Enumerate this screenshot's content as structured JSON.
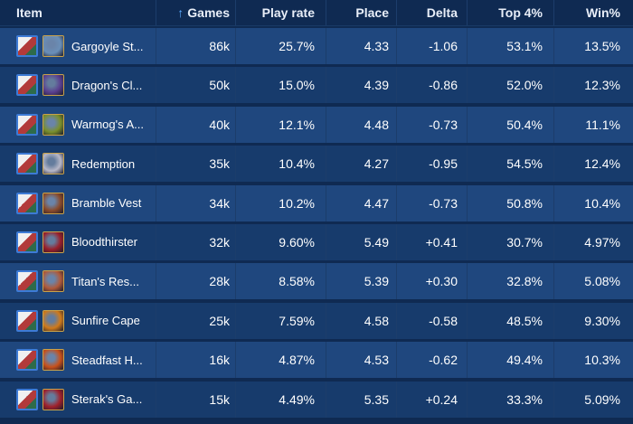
{
  "header": {
    "item": "Item",
    "games": "Games",
    "play_rate": "Play rate",
    "place": "Place",
    "delta": "Delta",
    "top4": "Top 4%",
    "win": "Win%"
  },
  "rows": [
    {
      "name": "Gargoyle St...",
      "icon": "gargoyle-stoneplate-icon",
      "color": "#6a8fb8",
      "games": "86k",
      "play_rate": "25.7%",
      "place": "4.33",
      "delta": "-1.06",
      "top4": "53.1%",
      "win": "13.5%"
    },
    {
      "name": "Dragon's Cl...",
      "icon": "dragons-claw-icon",
      "color": "#5a3f8f",
      "games": "50k",
      "play_rate": "15.0%",
      "place": "4.39",
      "delta": "-0.86",
      "top4": "52.0%",
      "win": "12.3%"
    },
    {
      "name": "Warmog's A...",
      "icon": "warmogs-armor-icon",
      "color": "#7a8f2a",
      "games": "40k",
      "play_rate": "12.1%",
      "place": "4.48",
      "delta": "-0.73",
      "top4": "50.4%",
      "win": "11.1%"
    },
    {
      "name": "Redemption",
      "icon": "redemption-icon",
      "color": "#b8b8c8",
      "games": "35k",
      "play_rate": "10.4%",
      "place": "4.27",
      "delta": "-0.95",
      "top4": "54.5%",
      "win": "12.4%"
    },
    {
      "name": "Bramble Vest",
      "icon": "bramble-vest-icon",
      "color": "#8a4a2a",
      "games": "34k",
      "play_rate": "10.2%",
      "place": "4.47",
      "delta": "-0.73",
      "top4": "50.8%",
      "win": "10.4%"
    },
    {
      "name": "Bloodthirster",
      "icon": "bloodthirster-icon",
      "color": "#9a1f2a",
      "games": "32k",
      "play_rate": "9.60%",
      "place": "5.49",
      "delta": "+0.41",
      "top4": "30.7%",
      "win": "4.97%"
    },
    {
      "name": "Titan's Res...",
      "icon": "titans-resolve-icon",
      "color": "#b05a3a",
      "games": "28k",
      "play_rate": "8.58%",
      "place": "5.39",
      "delta": "+0.30",
      "top4": "32.8%",
      "win": "5.08%"
    },
    {
      "name": "Sunfire Cape",
      "icon": "sunfire-cape-icon",
      "color": "#d07a1a",
      "games": "25k",
      "play_rate": "7.59%",
      "place": "4.58",
      "delta": "-0.58",
      "top4": "48.5%",
      "win": "9.30%"
    },
    {
      "name": "Steadfast H...",
      "icon": "steadfast-heart-icon",
      "color": "#c8501a",
      "games": "16k",
      "play_rate": "4.87%",
      "place": "4.53",
      "delta": "-0.62",
      "top4": "49.4%",
      "win": "10.3%"
    },
    {
      "name": "Sterak's Ga...",
      "icon": "steraks-gage-icon",
      "color": "#a0202a",
      "games": "15k",
      "play_rate": "4.49%",
      "place": "5.35",
      "delta": "+0.24",
      "top4": "33.3%",
      "win": "5.09%"
    }
  ]
}
